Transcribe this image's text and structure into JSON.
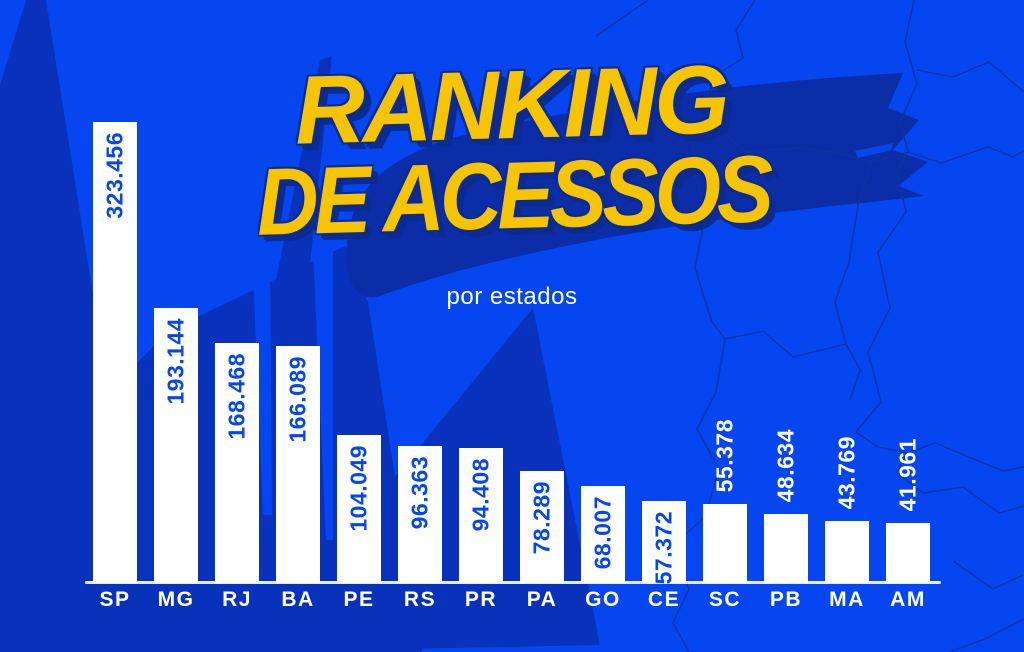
{
  "title": {
    "line1": "RANKING",
    "line2": "DE ACESSOS",
    "subtitle": "por estados"
  },
  "colors": {
    "background": "#0546F0",
    "starburst_shape": "#0831BC",
    "brush_swoosh": "#0B2EA8",
    "map_line": "#12339E",
    "bar_fill": "#FFFFFF",
    "value_inside": "#0546F0",
    "value_outside": "#FFFFFF",
    "title_yellow": "#F6C400",
    "title_shadow": "#0A2B94",
    "axis_line": "#E9EDFB",
    "x_label": "#FFFFFF"
  },
  "chart_data": {
    "type": "bar",
    "title": "RANKING DE ACESSOS",
    "subtitle": "por estados",
    "orientation": "vertical",
    "categories": [
      "SP",
      "MG",
      "RJ",
      "BA",
      "PE",
      "RS",
      "PR",
      "PA",
      "GO",
      "CE",
      "SC",
      "PB",
      "MA",
      "AM"
    ],
    "values": [
      323456,
      193144,
      168468,
      166089,
      104049,
      96363,
      94408,
      78289,
      68007,
      57372,
      55378,
      48634,
      43769,
      41961
    ],
    "value_labels": [
      "323.456",
      "193.144",
      "168.468",
      "166.089",
      "104.049",
      "96.363",
      "94.408",
      "78.289",
      "68.007",
      "57.372",
      "55.378",
      "48.634",
      "43.769",
      "41.961"
    ],
    "ylim": [
      0,
      323456
    ],
    "grid": false,
    "legend": false,
    "bar_color": "#FFFFFF",
    "value_label_rule": "inside bar (blue) when bar is tall, above bar (white) when bar is short"
  }
}
